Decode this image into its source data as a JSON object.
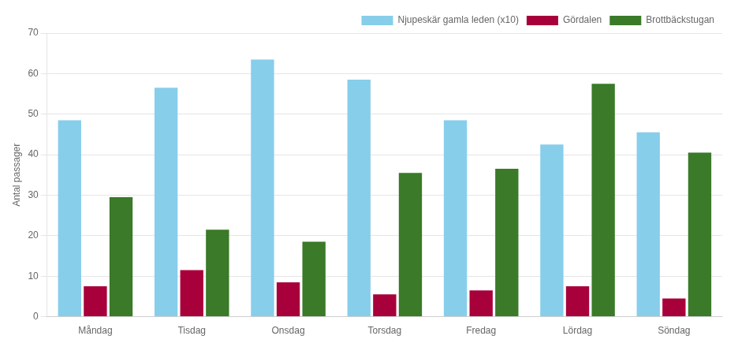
{
  "chart_data": {
    "type": "bar",
    "ylabel": "Antal passager",
    "categories": [
      "Måndag",
      "Tisdag",
      "Onsdag",
      "Torsdag",
      "Fredag",
      "Lördag",
      "Söndag"
    ],
    "series": [
      {
        "name": "Njupeskär gamla leden (x10)",
        "color": "#87CEEB",
        "values": [
          48.5,
          56.5,
          63.5,
          58.5,
          48.5,
          42.5,
          45.5
        ]
      },
      {
        "name": "Gördalen",
        "color": "#A8003A",
        "values": [
          7.5,
          11.5,
          8.5,
          5.5,
          6.5,
          7.5,
          4.5
        ]
      },
      {
        "name": "Brottbäckstugan",
        "color": "#3A7A28",
        "values": [
          29.5,
          21.5,
          18.5,
          35.5,
          36.5,
          57.5,
          40.5
        ]
      }
    ],
    "ylim": [
      0,
      70
    ],
    "yticks": [
      0,
      10,
      20,
      30,
      40,
      50,
      60,
      70
    ],
    "grid": true,
    "legend": "upper right"
  }
}
